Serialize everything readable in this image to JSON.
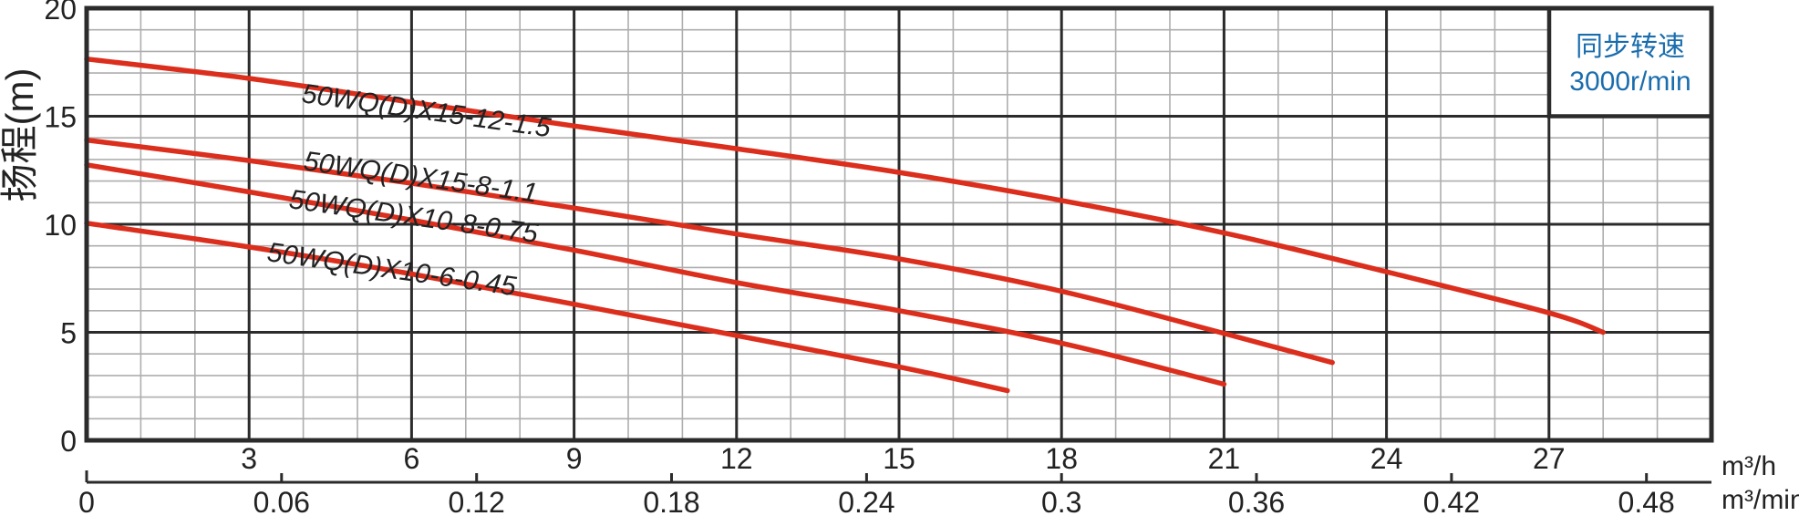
{
  "page": {
    "background": "#ffffff"
  },
  "chart_data": {
    "type": "line",
    "title": "",
    "ylabel": "扬程(m)",
    "grid": {
      "on": true,
      "minor_step_x": 1,
      "major_step_x": 3,
      "minor_step_y": 1,
      "major_step_y": 5,
      "major_color": "#2b2b2b",
      "minor_color": "#aeaeae"
    },
    "y_axis": {
      "range": [
        0,
        20
      ],
      "ticks": [
        "20",
        "15",
        "10",
        "5",
        "0"
      ],
      "tick_values": [
        20,
        15,
        10,
        5,
        0
      ]
    },
    "x_axis_primary": {
      "unit": "m³/h",
      "range": [
        0,
        30
      ],
      "tick_values": [
        3,
        6,
        9,
        12,
        15,
        18,
        21,
        24,
        27
      ],
      "ticks": [
        "3",
        "6",
        "9",
        "12",
        "15",
        "18",
        "21",
        "24",
        "27"
      ]
    },
    "x_axis_secondary": {
      "unit": "m³/min",
      "range": [
        0,
        0.48
      ],
      "tick_values": [
        0,
        0.06,
        0.12,
        0.18,
        0.24,
        0.3,
        0.36,
        0.42,
        0.48
      ],
      "ticks": [
        "0",
        "0.06",
        "0.12",
        "0.18",
        "0.24",
        "0.3",
        "0.36",
        "0.42",
        "0.48"
      ]
    },
    "annotation_box": {
      "line1": "同步转速",
      "line2": "3000r/min",
      "text_color": "#1a6dad"
    },
    "curve_color": "#dc2e1d",
    "series": [
      {
        "name": "50WQ(D)X15-12-1.5",
        "points": [
          [
            0,
            17.65
          ],
          [
            3,
            16.75
          ],
          [
            6,
            15.65
          ],
          [
            9,
            14.55
          ],
          [
            12,
            13.5
          ],
          [
            15,
            12.4
          ],
          [
            18,
            11.1
          ],
          [
            21,
            9.6
          ],
          [
            24,
            7.8
          ],
          [
            27,
            5.9
          ],
          [
            28,
            5.0
          ]
        ],
        "label": {
          "x": 330,
          "y": 112,
          "angle": 8
        }
      },
      {
        "name": "50WQ(D)X15-8-1.1",
        "points": [
          [
            0,
            13.9
          ],
          [
            3,
            12.95
          ],
          [
            6,
            11.9
          ],
          [
            9,
            10.75
          ],
          [
            12,
            9.55
          ],
          [
            15,
            8.4
          ],
          [
            18,
            6.9
          ],
          [
            21,
            4.95
          ],
          [
            23,
            3.6
          ]
        ],
        "label": {
          "x": 332,
          "y": 186,
          "angle": 8
        }
      },
      {
        "name": "50WQ(D)X10-8-0.75",
        "points": [
          [
            0,
            12.75
          ],
          [
            3,
            11.5
          ],
          [
            6,
            10.2
          ],
          [
            9,
            8.8
          ],
          [
            12,
            7.3
          ],
          [
            15,
            6.0
          ],
          [
            18,
            4.5
          ],
          [
            21,
            2.6
          ]
        ],
        "label": {
          "x": 316,
          "y": 228,
          "angle": 8
        }
      },
      {
        "name": "50WQ(D)X10-6-0.45",
        "points": [
          [
            0,
            10.05
          ],
          [
            3,
            8.95
          ],
          [
            6,
            7.7
          ],
          [
            9,
            6.3
          ],
          [
            12,
            4.85
          ],
          [
            15,
            3.4
          ],
          [
            17,
            2.3
          ]
        ],
        "label": {
          "x": 292,
          "y": 286,
          "angle": 8
        }
      }
    ]
  }
}
